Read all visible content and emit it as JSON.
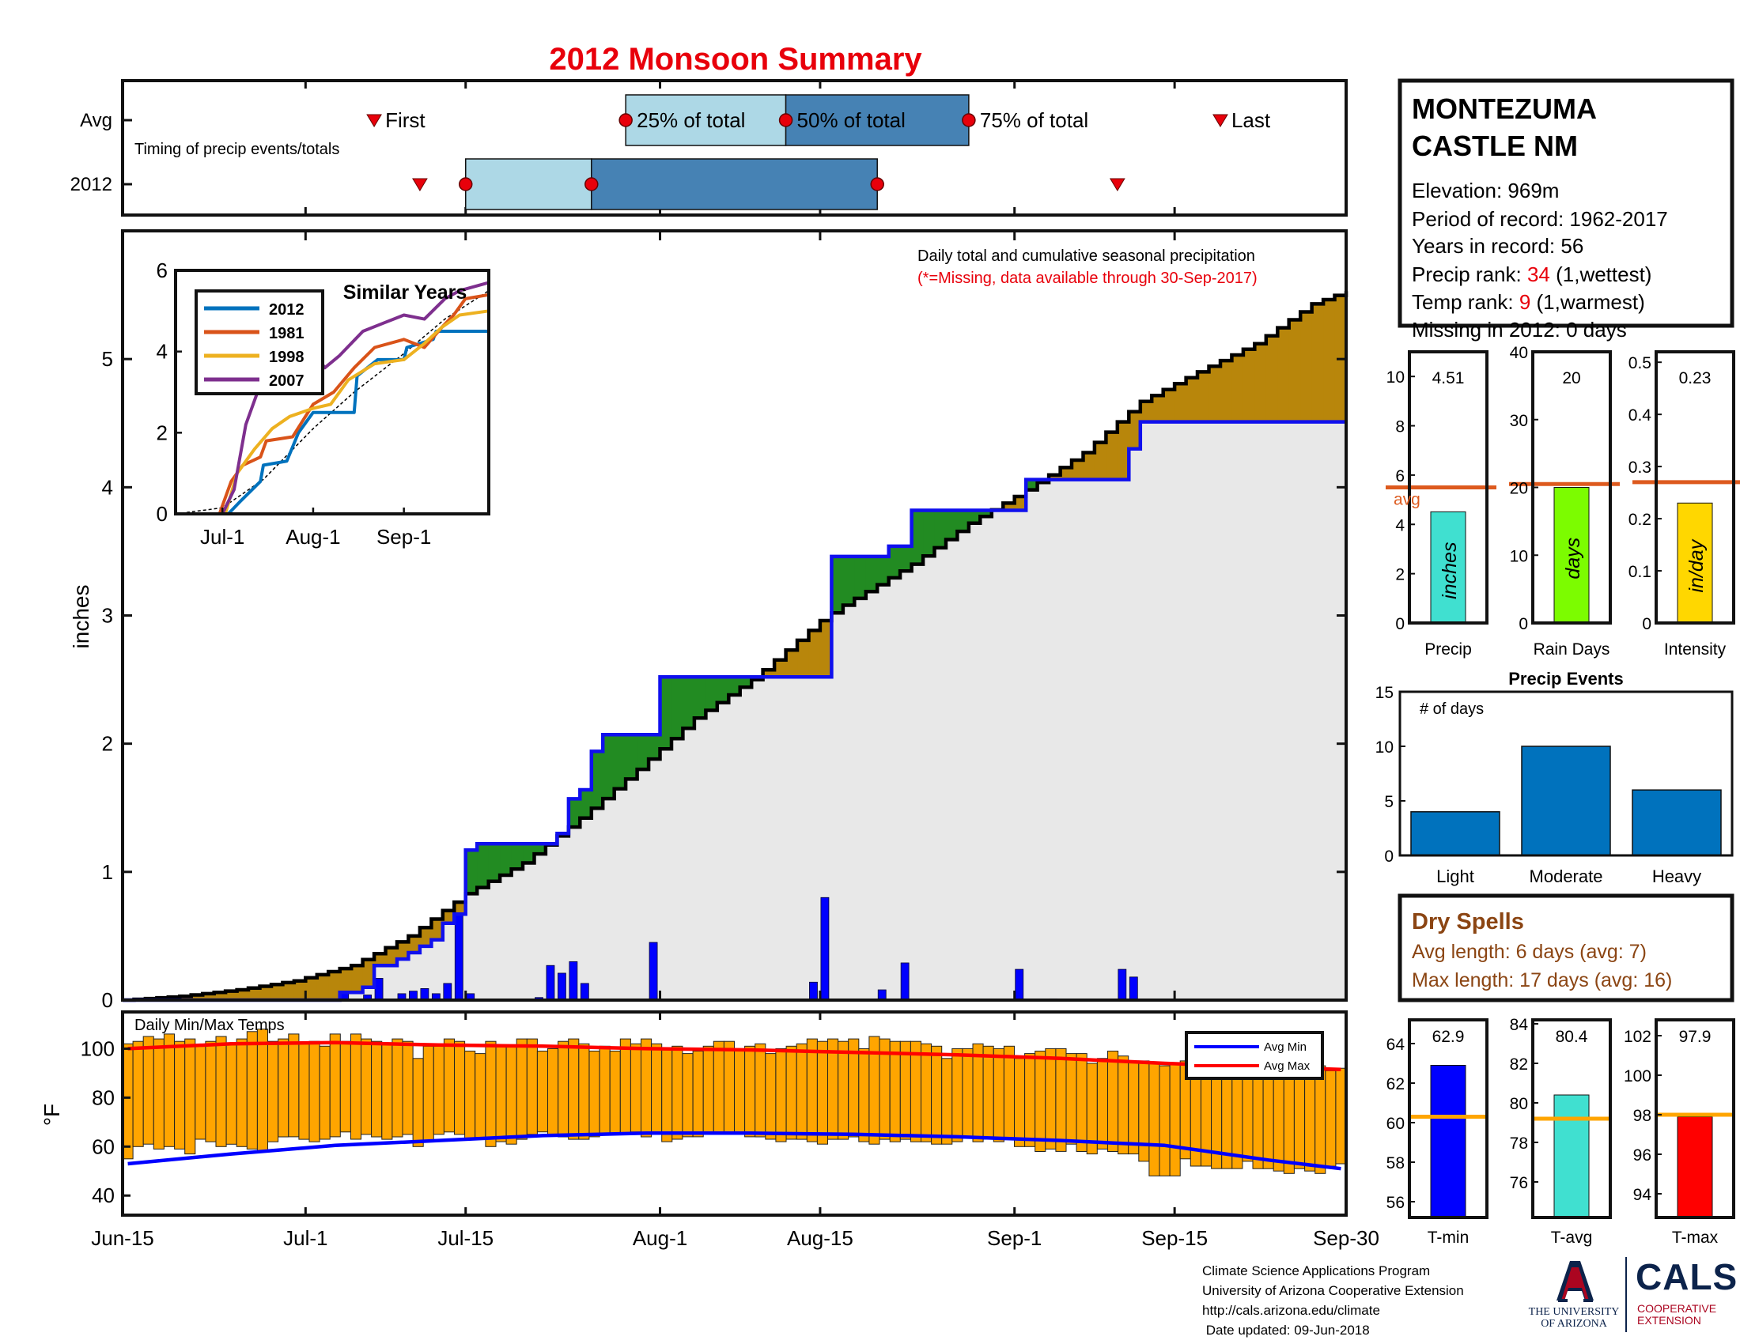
{
  "title": "2012 Monsoon Summary",
  "colors": {
    "title": "#e8000b",
    "box_light": "#add8e6",
    "box_dark": "#4682b4",
    "marker": "#e8000b",
    "above": "#228b22",
    "below": "#b8860b",
    "area_fill": "#e8e8e8",
    "daily_bar": "#0000ff",
    "avg_line": "#dd5a1e",
    "temp_bar": "#ffa500",
    "avg_max": "#ff0000",
    "avg_min": "#0000ff",
    "dry_text": "#8b4513",
    "ua_navy": "#0c234b",
    "ua_red": "#ab0520"
  },
  "timing": {
    "legend": "Timing of precip events/totals",
    "row_labels": [
      "Avg",
      "2012"
    ],
    "labels": {
      "first": "First",
      "p25": "25% of total",
      "p50": "50% of total",
      "p75": "75% of total",
      "last": "Last"
    },
    "avg": {
      "first": "2012-07-07",
      "p25": "2012-07-29",
      "p50": "2012-08-12",
      "p75": "2012-08-28",
      "last": "2012-09-19"
    },
    "y2012": {
      "first": "2012-07-11",
      "p25": "2012-07-15",
      "p50": "2012-07-26",
      "p75": "2012-08-20",
      "last": "2012-09-10"
    }
  },
  "station": {
    "name_line1": "MONTEZUMA",
    "name_line2": "CASTLE NM",
    "elevation": "Elevation: 969m",
    "period": "Period of record: 1962-2017",
    "years": "Years in record: 56",
    "precip_rank_label": "Precip rank: ",
    "precip_rank_value": "34",
    "precip_rank_note": " (1,wettest)",
    "temp_rank_label": "Temp rank: ",
    "temp_rank_value": "9",
    "temp_rank_note": " (1,warmest)",
    "missing": "Missing in 2012: 0 days"
  },
  "main_chart": {
    "caption": "Daily total and cumulative seasonal precipitation",
    "note": "(*=Missing, data available through 30-Sep-2017)",
    "ylabel": "inches",
    "ylim": [
      0,
      6
    ],
    "yticks": [
      0,
      1,
      2,
      3,
      4,
      5
    ],
    "x_tick_labels": [
      "Jun-15",
      "Jul-1",
      "Jul-15",
      "Aug-1",
      "Aug-15",
      "Sep-1",
      "Sep-15",
      "Sep-30"
    ],
    "x_tick_dates": [
      "2012-06-15",
      "2012-07-01",
      "2012-07-15",
      "2012-08-01",
      "2012-08-15",
      "2012-09-01",
      "2012-09-15",
      "2012-09-30"
    ],
    "season_start": "2012-06-15",
    "season_end": "2012-09-30",
    "avg_cumulative": [
      [
        "2012-06-15",
        0.0
      ],
      [
        "2012-06-20",
        0.03
      ],
      [
        "2012-06-25",
        0.08
      ],
      [
        "2012-06-30",
        0.15
      ],
      [
        "2012-07-05",
        0.27
      ],
      [
        "2012-07-10",
        0.5
      ],
      [
        "2012-07-15",
        0.83
      ],
      [
        "2012-07-20",
        1.07
      ],
      [
        "2012-07-25",
        1.42
      ],
      [
        "2012-07-30",
        1.8
      ],
      [
        "2012-08-04",
        2.2
      ],
      [
        "2012-08-09",
        2.5
      ],
      [
        "2012-08-15",
        2.96
      ],
      [
        "2012-08-17",
        3.08
      ],
      [
        "2012-08-23",
        3.4
      ],
      [
        "2012-08-28",
        3.72
      ],
      [
        "2012-09-02",
        3.98
      ],
      [
        "2012-09-07",
        4.27
      ],
      [
        "2012-09-12",
        4.67
      ],
      [
        "2012-09-17",
        4.9
      ],
      [
        "2012-09-22",
        5.12
      ],
      [
        "2012-09-27",
        5.43
      ],
      [
        "2012-09-30",
        5.53
      ]
    ],
    "obs_cumulative": [
      [
        "2012-06-15",
        0.0
      ],
      [
        "2012-07-03",
        0.0
      ],
      [
        "2012-07-04",
        0.06
      ],
      [
        "2012-07-06",
        0.1
      ],
      [
        "2012-07-07",
        0.27
      ],
      [
        "2012-07-09",
        0.32
      ],
      [
        "2012-07-10",
        0.37
      ],
      [
        "2012-07-11",
        0.42
      ],
      [
        "2012-07-12",
        0.47
      ],
      [
        "2012-07-13",
        0.6
      ],
      [
        "2012-07-14",
        0.67
      ],
      [
        "2012-07-15",
        1.17
      ],
      [
        "2012-07-16",
        1.22
      ],
      [
        "2012-07-22",
        1.22
      ],
      [
        "2012-07-23",
        1.3
      ],
      [
        "2012-07-24",
        1.57
      ],
      [
        "2012-07-25",
        1.64
      ],
      [
        "2012-07-26",
        1.94
      ],
      [
        "2012-07-27",
        2.07
      ],
      [
        "2012-07-31",
        2.07
      ],
      [
        "2012-08-01",
        2.52
      ],
      [
        "2012-08-15",
        2.52
      ],
      [
        "2012-08-16",
        3.46
      ],
      [
        "2012-08-20",
        3.46
      ],
      [
        "2012-08-21",
        3.54
      ],
      [
        "2012-08-23",
        3.82
      ],
      [
        "2012-09-01",
        3.82
      ],
      [
        "2012-09-02",
        4.06
      ],
      [
        "2012-09-10",
        4.06
      ],
      [
        "2012-09-11",
        4.3
      ],
      [
        "2012-09-12",
        4.51
      ],
      [
        "2012-09-30",
        4.51
      ]
    ],
    "daily_bars": [
      [
        "2012-07-04",
        0.06
      ],
      [
        "2012-07-06",
        0.04
      ],
      [
        "2012-07-07",
        0.17
      ],
      [
        "2012-07-09",
        0.05
      ],
      [
        "2012-07-10",
        0.07
      ],
      [
        "2012-07-11",
        0.09
      ],
      [
        "2012-07-12",
        0.05
      ],
      [
        "2012-07-13",
        0.13
      ],
      [
        "2012-07-14",
        0.67
      ],
      [
        "2012-07-15",
        0.05
      ],
      [
        "2012-07-21",
        0.02
      ],
      [
        "2012-07-22",
        0.27
      ],
      [
        "2012-07-23",
        0.21
      ],
      [
        "2012-07-24",
        0.3
      ],
      [
        "2012-07-25",
        0.13
      ],
      [
        "2012-07-31",
        0.45
      ],
      [
        "2012-08-14",
        0.14
      ],
      [
        "2012-08-15",
        0.8
      ],
      [
        "2012-08-20",
        0.08
      ],
      [
        "2012-08-22",
        0.29
      ],
      [
        "2012-09-01",
        0.24
      ],
      [
        "2012-09-04",
        0.01
      ],
      [
        "2012-09-10",
        0.24
      ],
      [
        "2012-09-11",
        0.18
      ]
    ]
  },
  "inset": {
    "title": "Similar Years",
    "ylim": [
      0,
      6
    ],
    "yticks": [
      0,
      2,
      4,
      6
    ],
    "x_tick_labels": [
      "Jul-1",
      "Aug-1",
      "Sep-1"
    ],
    "x_tick_dates": [
      "2012-07-01",
      "2012-08-01",
      "2012-09-01"
    ],
    "series": [
      {
        "name": "2012",
        "color": "#0072bd",
        "points": [
          [
            "2012-06-15",
            0
          ],
          [
            "2012-07-03",
            0
          ],
          [
            "2012-07-07",
            0.3
          ],
          [
            "2012-07-14",
            0.8
          ],
          [
            "2012-07-15",
            1.2
          ],
          [
            "2012-07-23",
            1.3
          ],
          [
            "2012-07-27",
            2.0
          ],
          [
            "2012-08-01",
            2.5
          ],
          [
            "2012-08-15",
            2.5
          ],
          [
            "2012-08-16",
            3.4
          ],
          [
            "2012-08-23",
            3.8
          ],
          [
            "2012-09-01",
            3.8
          ],
          [
            "2012-09-02",
            4.1
          ],
          [
            "2012-09-11",
            4.3
          ],
          [
            "2012-09-12",
            4.5
          ],
          [
            "2012-09-30",
            4.5
          ]
        ]
      },
      {
        "name": "1981",
        "color": "#d95319",
        "points": [
          [
            "2012-06-15",
            0
          ],
          [
            "2012-06-30",
            0
          ],
          [
            "2012-07-04",
            0.8
          ],
          [
            "2012-07-08",
            1.2
          ],
          [
            "2012-07-14",
            1.4
          ],
          [
            "2012-07-16",
            1.8
          ],
          [
            "2012-07-25",
            1.9
          ],
          [
            "2012-08-01",
            2.7
          ],
          [
            "2012-08-08",
            3.0
          ],
          [
            "2012-08-15",
            3.6
          ],
          [
            "2012-08-22",
            4.1
          ],
          [
            "2012-09-01",
            4.3
          ],
          [
            "2012-09-08",
            4.1
          ],
          [
            "2012-09-14",
            4.6
          ],
          [
            "2012-09-18",
            4.9
          ],
          [
            "2012-09-22",
            5.3
          ],
          [
            "2012-09-30",
            5.4
          ]
        ]
      },
      {
        "name": "1998",
        "color": "#edb120",
        "points": [
          [
            "2012-06-15",
            0
          ],
          [
            "2012-07-02",
            0
          ],
          [
            "2012-07-06",
            1.0
          ],
          [
            "2012-07-12",
            1.6
          ],
          [
            "2012-07-18",
            2.1
          ],
          [
            "2012-07-24",
            2.4
          ],
          [
            "2012-08-01",
            2.6
          ],
          [
            "2012-08-07",
            2.7
          ],
          [
            "2012-08-13",
            3.3
          ],
          [
            "2012-08-22",
            3.7
          ],
          [
            "2012-09-01",
            3.8
          ],
          [
            "2012-09-08",
            4.2
          ],
          [
            "2012-09-14",
            4.6
          ],
          [
            "2012-09-20",
            4.9
          ],
          [
            "2012-09-30",
            5.0
          ]
        ]
      },
      {
        "name": "2007",
        "color": "#7e2f8e",
        "points": [
          [
            "2012-06-15",
            0
          ],
          [
            "2012-07-01",
            0
          ],
          [
            "2012-07-05",
            0.6
          ],
          [
            "2012-07-09",
            2.2
          ],
          [
            "2012-07-13",
            3.0
          ],
          [
            "2012-07-16",
            3.9
          ],
          [
            "2012-07-20",
            4.0
          ],
          [
            "2012-08-01",
            4.0
          ],
          [
            "2012-08-05",
            3.6
          ],
          [
            "2012-08-10",
            3.9
          ],
          [
            "2012-08-18",
            4.5
          ],
          [
            "2012-08-25",
            4.7
          ],
          [
            "2012-09-01",
            4.9
          ],
          [
            "2012-09-08",
            4.8
          ],
          [
            "2012-09-15",
            5.3
          ],
          [
            "2012-09-20",
            5.5
          ],
          [
            "2012-09-30",
            5.7
          ]
        ]
      }
    ],
    "avg_line": [
      [
        "2012-06-15",
        0
      ],
      [
        "2012-07-01",
        0.15
      ],
      [
        "2012-07-15",
        0.85
      ],
      [
        "2012-08-01",
        2.1
      ],
      [
        "2012-08-15",
        3.0
      ],
      [
        "2012-09-01",
        3.95
      ],
      [
        "2012-09-15",
        4.8
      ],
      [
        "2012-09-30",
        5.5
      ]
    ]
  },
  "small_bars": [
    {
      "value": 4.51,
      "value_label": "4.51",
      "unit": "inches",
      "category": "Precip",
      "avg": 5.5,
      "avg_label": "avg",
      "ylim": [
        0,
        11
      ],
      "yticks": [
        0,
        2,
        4,
        6,
        8,
        10
      ],
      "color": "#40e0d0"
    },
    {
      "value": 20,
      "value_label": "20",
      "unit": "days",
      "category": "Rain Days",
      "avg": 20.5,
      "avg_label": "",
      "ylim": [
        0,
        40
      ],
      "yticks": [
        0,
        10,
        20,
        30,
        40
      ],
      "color": "#7cfc00"
    },
    {
      "value": 0.23,
      "value_label": "0.23",
      "unit": "in/day",
      "category": "Intensity",
      "avg": 0.27,
      "avg_label": "",
      "ylim": [
        0,
        0.52
      ],
      "yticks": [
        0,
        0.1,
        0.2,
        0.3,
        0.4,
        0.5
      ],
      "ytick_labels": [
        "0",
        "0.1",
        "0.2",
        "0.3",
        "0.4",
        "0.5"
      ],
      "color": "#ffd700"
    }
  ],
  "precip_events": {
    "title": "Precip Events",
    "ylabel_in": "# of days",
    "categories": [
      "Light",
      "Moderate",
      "Heavy"
    ],
    "values": [
      4,
      10,
      6
    ],
    "ylim": [
      0,
      15
    ],
    "yticks": [
      0,
      5,
      10,
      15
    ]
  },
  "dry_spells": {
    "title": "Dry Spells",
    "avg_length": "Avg length: 6 days (avg: 7)",
    "max_length": "Max length: 17 days (avg: 16)"
  },
  "temps": {
    "label": "Daily Min/Max Temps",
    "ylabel": "°F",
    "ylim": [
      32,
      115
    ],
    "yticks": [
      40,
      60,
      80,
      100
    ],
    "legend": [
      "Avg Min",
      "Avg Max"
    ],
    "daily_min": [
      55,
      60,
      61,
      59,
      60,
      59,
      57,
      63,
      62,
      60,
      61,
      60,
      59,
      58,
      62,
      64,
      64,
      63,
      62,
      63,
      64,
      66,
      63,
      65,
      64,
      63,
      64,
      65,
      60,
      62,
      65,
      66,
      65,
      63,
      63,
      60,
      62,
      61,
      63,
      65,
      66,
      65,
      64,
      63,
      63,
      64,
      65,
      65,
      65,
      66,
      64,
      65,
      62,
      63,
      64,
      64,
      66,
      66,
      65,
      65,
      64,
      64,
      63,
      62,
      63,
      63,
      62,
      61,
      63,
      63,
      64,
      62,
      61,
      63,
      62,
      63,
      62,
      62,
      61,
      61,
      62,
      64,
      62,
      63,
      62,
      63,
      60,
      60,
      58,
      59,
      58,
      61,
      58,
      57,
      59,
      58,
      57,
      57,
      54,
      48,
      48,
      48,
      55,
      52,
      52,
      51,
      51,
      51,
      54,
      51,
      51,
      50,
      49,
      51,
      50,
      49,
      52,
      53
    ],
    "daily_max": [
      102,
      103,
      105,
      104,
      106,
      103,
      104,
      101,
      103,
      105,
      102,
      104,
      107,
      108,
      103,
      104,
      106,
      102,
      103,
      101,
      106,
      103,
      106,
      104,
      103,
      102,
      104,
      103,
      96,
      101,
      101,
      104,
      103,
      99,
      98,
      103,
      101,
      101,
      104,
      104,
      99,
      100,
      103,
      104,
      102,
      99,
      101,
      99,
      104,
      102,
      104,
      102,
      100,
      101,
      98,
      99,
      101,
      103,
      103,
      99,
      101,
      102,
      98,
      100,
      101,
      102,
      104,
      103,
      104,
      103,
      104,
      100,
      105,
      104,
      103,
      103,
      103,
      102,
      101,
      96,
      100,
      100,
      102,
      101,
      100,
      101,
      96,
      98,
      99,
      100,
      100,
      98,
      98,
      94,
      96,
      99,
      97,
      95,
      95,
      94,
      93,
      94,
      95,
      96,
      94,
      95,
      94,
      93,
      92,
      91,
      92,
      93,
      92,
      90,
      92,
      93,
      91,
      92
    ],
    "avg_min": [
      [
        0,
        53
      ],
      [
        10,
        57
      ],
      [
        20,
        60.5
      ],
      [
        30,
        62.5
      ],
      [
        40,
        64.5
      ],
      [
        50,
        65.5
      ],
      [
        60,
        65.5
      ],
      [
        70,
        65
      ],
      [
        80,
        64
      ],
      [
        90,
        62.5
      ],
      [
        100,
        60.5
      ],
      [
        105,
        57.5
      ],
      [
        110,
        54.5
      ],
      [
        117,
        51
      ]
    ],
    "avg_max": [
      [
        0,
        100
      ],
      [
        10,
        102
      ],
      [
        20,
        102.5
      ],
      [
        30,
        101.5
      ],
      [
        40,
        101
      ],
      [
        50,
        100
      ],
      [
        60,
        99.5
      ],
      [
        70,
        98.5
      ],
      [
        80,
        97.5
      ],
      [
        90,
        96
      ],
      [
        100,
        94
      ],
      [
        110,
        92.5
      ],
      [
        117,
        91.5
      ]
    ]
  },
  "temp_bars": [
    {
      "value": 62.9,
      "value_label": "62.9",
      "category": "T-min",
      "avg": 60.3,
      "ylim": [
        55.2,
        65.2
      ],
      "yticks": [
        56,
        58,
        60,
        62,
        64
      ],
      "color": "#0000ff"
    },
    {
      "value": 80.4,
      "value_label": "80.4",
      "category": "T-avg",
      "avg": 79.2,
      "ylim": [
        74.2,
        84.2
      ],
      "yticks": [
        76,
        78,
        80,
        82,
        84
      ],
      "color": "#40e0d0"
    },
    {
      "value": 97.9,
      "value_label": "97.9",
      "category": "T-max",
      "avg": 98.0,
      "ylim": [
        92.8,
        102.8
      ],
      "yticks": [
        94,
        96,
        98,
        100,
        102
      ],
      "color": "#ff0000"
    }
  ],
  "footer": {
    "line1": "Climate Science Applications Program",
    "line2": "University of Arizona Cooperative Extension",
    "line3": "http://cals.arizona.edu/climate",
    "line4": " Date updated: 09-Jun-2018"
  },
  "logos": {
    "ua_line1": "THE UNIVERSITY",
    "ua_line2": "OF ARIZONA",
    "cals": "CALS",
    "cals_sub1": "COOPERATIVE",
    "cals_sub2": "EXTENSION"
  }
}
